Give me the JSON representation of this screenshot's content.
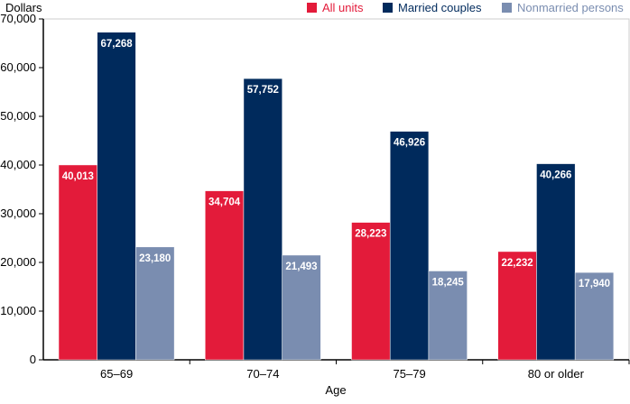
{
  "chart_data": {
    "type": "bar",
    "ylabel": "Dollars",
    "xlabel": "Age",
    "categories": [
      "65–69",
      "70–74",
      "75–79",
      "80 or older"
    ],
    "ylim": [
      0,
      70000
    ],
    "yticks": [
      "0",
      "10,000",
      "20,000",
      "30,000",
      "40,000",
      "50,000",
      "60,000",
      "70,000"
    ],
    "legend": "top-right",
    "grid": false,
    "series": [
      {
        "name": "All units",
        "color": "#E31B3A",
        "values": [
          40013,
          34704,
          28223,
          22232
        ],
        "labels": [
          "40,013",
          "34,704",
          "28,223",
          "22,232"
        ]
      },
      {
        "name": "Married couples",
        "color": "#002A5C",
        "values": [
          67268,
          57752,
          46926,
          40266
        ],
        "labels": [
          "67,268",
          "57,752",
          "46,926",
          "40,266"
        ]
      },
      {
        "name": "Nonmarried persons",
        "color": "#7A8DB0",
        "values": [
          23180,
          21493,
          18245,
          17940
        ],
        "labels": [
          "23,180",
          "21,493",
          "18,245",
          "17,940"
        ]
      }
    ]
  }
}
